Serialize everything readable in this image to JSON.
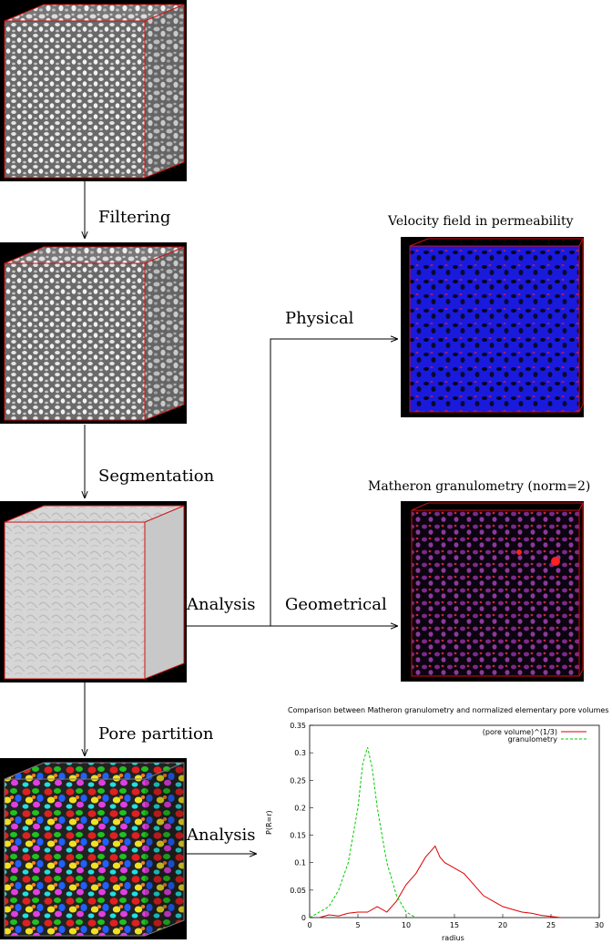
{
  "labels": {
    "filtering": "Filtering",
    "segmentation": "Segmentation",
    "pore_partition": "Pore partition",
    "analysis_top": "Analysis",
    "analysis_bottom": "Analysis",
    "physical": "Physical",
    "geometrical": "Geometrical"
  },
  "titles": {
    "velocity": "Velocity field in permeability",
    "matheron": "Matheron granulometry (norm=2)"
  },
  "colors": {
    "cube_edge": "#cc1111",
    "velocity_fill": "#1a1add",
    "matheron_fill": "#7a2a8a",
    "series_pore": "#dd0000",
    "series_gran": "#00cc00"
  },
  "chart_data": {
    "type": "line",
    "title": "Comparison between Matheron granulometry and normalized elementary pore volumes",
    "xlabel": "radius",
    "ylabel": "P(R=r)",
    "xlim": [
      0,
      30
    ],
    "ylim": [
      0,
      0.35
    ],
    "xticks": [
      "0",
      "5",
      "10",
      "15",
      "20",
      "25",
      "30"
    ],
    "yticks": [
      "0",
      "0.05",
      "0.1",
      "0.15",
      "0.2",
      "0.25",
      "0.3",
      "0.35"
    ],
    "legend_position": "top-right",
    "series": [
      {
        "name": "(pore volume)^(1/3)",
        "color": "#dd0000",
        "x": [
          1,
          2,
          3,
          4,
          5,
          6,
          7,
          8,
          9,
          10,
          11,
          12,
          12.5,
          13,
          13.5,
          14,
          15,
          16,
          17,
          18,
          19,
          20,
          21,
          22,
          23,
          24,
          25,
          26
        ],
        "y": [
          0.0,
          0.005,
          0.003,
          0.008,
          0.01,
          0.01,
          0.02,
          0.01,
          0.03,
          0.06,
          0.08,
          0.11,
          0.12,
          0.13,
          0.11,
          0.1,
          0.09,
          0.08,
          0.06,
          0.04,
          0.03,
          0.02,
          0.015,
          0.01,
          0.008,
          0.004,
          0.002,
          0.0
        ]
      },
      {
        "name": "granulometry",
        "color": "#00cc00",
        "x": [
          0,
          1,
          2,
          3,
          4,
          5,
          5.5,
          6,
          6.5,
          7,
          8,
          9,
          10,
          11
        ],
        "y": [
          0.0,
          0.01,
          0.02,
          0.05,
          0.1,
          0.2,
          0.28,
          0.31,
          0.27,
          0.2,
          0.1,
          0.04,
          0.01,
          0.0
        ]
      }
    ]
  }
}
